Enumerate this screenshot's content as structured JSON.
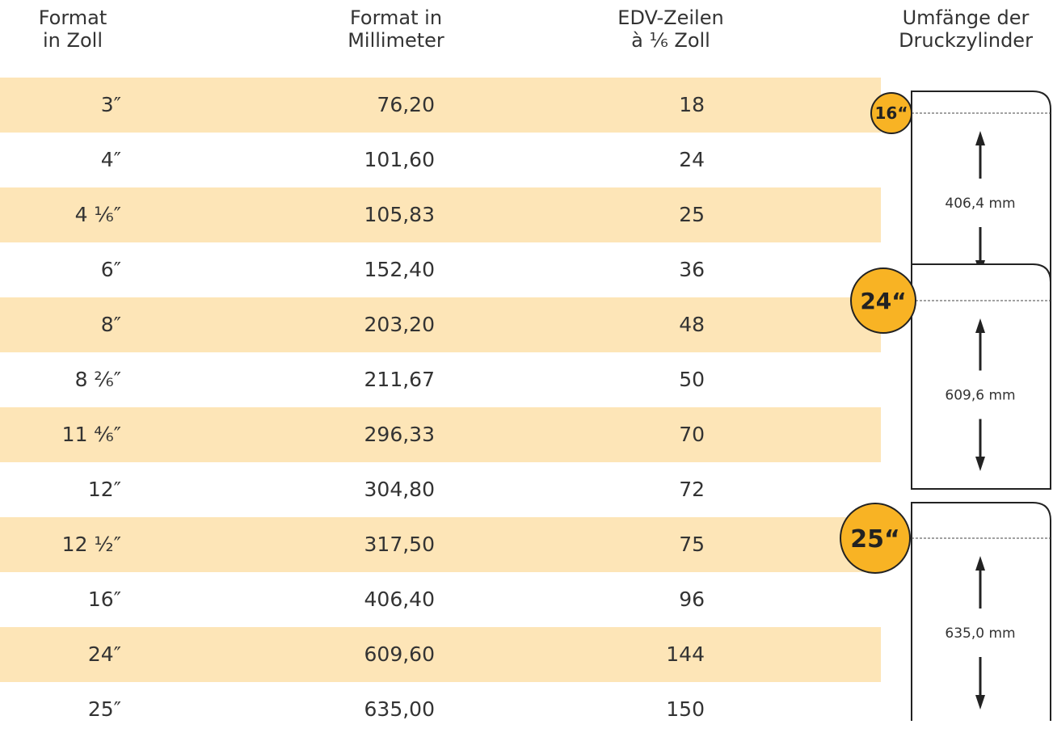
{
  "headers": [
    [
      "Format",
      "in Zoll"
    ],
    [
      "Format in",
      "Millimeter"
    ],
    [
      "EDV-Zeilen",
      "à ¹⁄₆ Zoll"
    ],
    [
      "Umfänge der",
      "Druckzylinder"
    ]
  ],
  "rows": [
    [
      "3″",
      "76,20",
      "18"
    ],
    [
      "4″",
      "101,60",
      "24"
    ],
    [
      "4 ¹⁄₆″",
      "105,83",
      "25"
    ],
    [
      "6″",
      "152,40",
      "36"
    ],
    [
      "8″",
      "203,20",
      "48"
    ],
    [
      "8 ²⁄₆″",
      "211,67",
      "50"
    ],
    [
      "11 ⁴⁄₆″",
      "296,33",
      "70"
    ],
    [
      "12″",
      "304,80",
      "72"
    ],
    [
      "12 ½″",
      "317,50",
      "75"
    ],
    [
      "16″",
      "406,40",
      "96"
    ],
    [
      "24″",
      "609,60",
      "144"
    ],
    [
      "25″",
      "635,00",
      "150"
    ]
  ],
  "cylinders": [
    {
      "label": "16“",
      "length": "406,4 mm"
    },
    {
      "label": "24“",
      "length": "609,6 mm"
    },
    {
      "label": "25“",
      "length": "635,0 mm"
    }
  ]
}
